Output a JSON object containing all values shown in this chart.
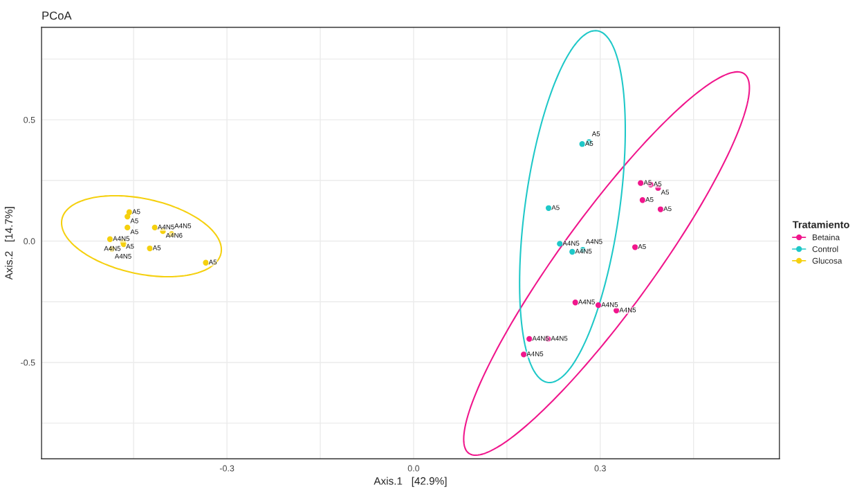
{
  "chart_data": {
    "type": "scatter",
    "title": "PCoA",
    "xlabel": "Axis.1   [42.9%]",
    "ylabel": "Axis.2   [14.7%]",
    "legend_title": "Tratamiento",
    "legend": "right",
    "grid": true,
    "marker": "circle",
    "xlim": [
      -0.598,
      0.588
    ],
    "ylim": [
      -0.897,
      0.881
    ],
    "xticks": [
      {
        "value": -0.45,
        "label": null
      },
      -0.3,
      {
        "value": -0.15,
        "label": null
      },
      {
        "value": 0.0,
        "label": "0.0"
      },
      {
        "value": 0.15,
        "label": null
      },
      0.3,
      {
        "value": 0.45,
        "label": null
      }
    ],
    "yticks": [
      {
        "value": -0.75,
        "label": null
      },
      -0.5,
      {
        "value": -0.25,
        "label": null
      },
      {
        "value": 0.0,
        "label": "0.0"
      },
      {
        "value": 0.25,
        "label": null
      },
      0.5,
      {
        "value": 0.75,
        "label": null
      }
    ],
    "series": [
      {
        "name": "Betaina",
        "color": "#f0168c",
        "x": [
          0.365,
          0.381,
          0.393,
          0.368,
          0.397,
          0.356,
          0.26,
          0.297,
          0.326,
          0.186,
          0.216,
          0.177
        ],
        "values": [
          0.239,
          0.233,
          0.219,
          0.169,
          0.131,
          -0.025,
          -0.253,
          -0.264,
          -0.286,
          -0.403,
          -0.403,
          -0.467
        ],
        "value_labels": [
          "A5",
          "A5",
          "A5",
          "A5",
          "A5",
          "A5",
          "A4N5",
          "A4N5",
          "A4N5",
          "A4N5",
          "A4N5",
          "A4N5"
        ]
      },
      {
        "name": "Control",
        "color": "#1fc8c8",
        "x": [
          0.271,
          0.282,
          0.217,
          0.235,
          0.255,
          0.272
        ],
        "values": [
          0.4,
          0.408,
          0.136,
          -0.011,
          -0.044,
          -0.036
        ],
        "value_labels": [
          "A5",
          "A5",
          "A5",
          "A4N5",
          "A4N5",
          "A4N5"
        ]
      },
      {
        "name": "Glucosa",
        "color": "#f5d00f",
        "x": [
          -0.457,
          -0.46,
          -0.46,
          -0.416,
          -0.403,
          -0.389,
          -0.488,
          -0.467,
          -0.466,
          -0.485,
          -0.424,
          -0.334
        ],
        "values": [
          0.119,
          0.101,
          0.056,
          0.056,
          0.041,
          0.029,
          0.008,
          -0.004,
          -0.013,
          -0.033,
          -0.03,
          -0.089
        ],
        "value_labels": [
          "A5",
          "A5",
          "A5",
          "A4N5",
          "A4N6",
          "A4N5",
          "A4N5",
          "A5",
          "A4N5",
          "A4N5",
          "A5",
          "A5"
        ]
      }
    ]
  }
}
